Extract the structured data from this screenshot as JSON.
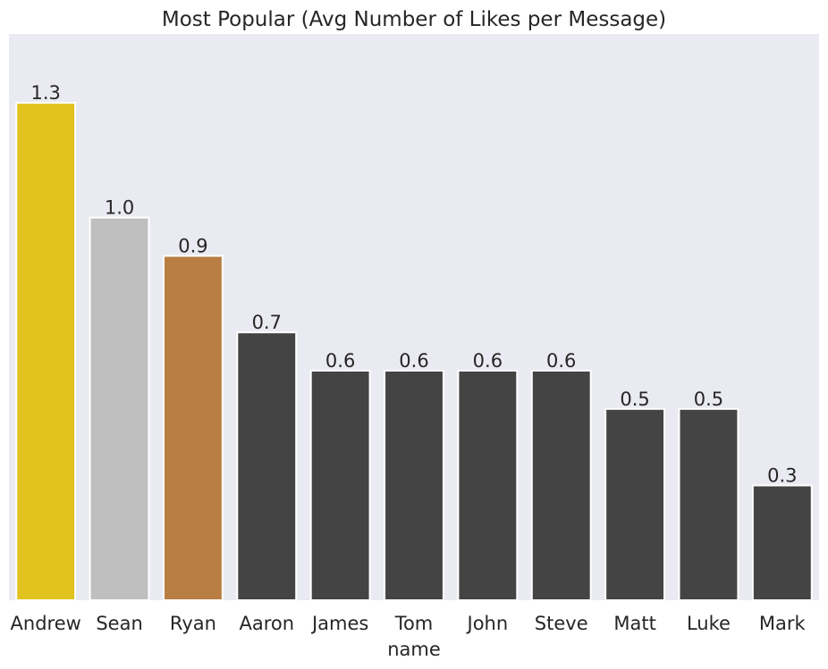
{
  "chart_data": {
    "type": "bar",
    "title": "Most Popular (Avg Number of Likes per Message)",
    "xlabel": "name",
    "ylabel": "",
    "categories": [
      "Andrew",
      "Sean",
      "Ryan",
      "Aaron",
      "James",
      "Tom",
      "John",
      "Steve",
      "Matt",
      "Luke",
      "Mark"
    ],
    "values": [
      1.3,
      1.0,
      0.9,
      0.7,
      0.6,
      0.6,
      0.6,
      0.6,
      0.5,
      0.5,
      0.3
    ],
    "value_labels": [
      "1.3",
      "1.0",
      "0.9",
      "0.7",
      "0.6",
      "0.6",
      "0.6",
      "0.6",
      "0.5",
      "0.5",
      "0.3"
    ],
    "ylim": [
      0,
      1.48
    ],
    "grid": false,
    "legend": "none",
    "colors": {
      "background": "#EAEAF2",
      "text": "#262626",
      "bar_outline": "#FFFFFF",
      "bars": [
        "#E1C21F",
        "#BFBFBF",
        "#B87E43",
        "#444444",
        "#444444",
        "#444444",
        "#444444",
        "#444444",
        "#444444",
        "#444444",
        "#444444"
      ]
    }
  }
}
